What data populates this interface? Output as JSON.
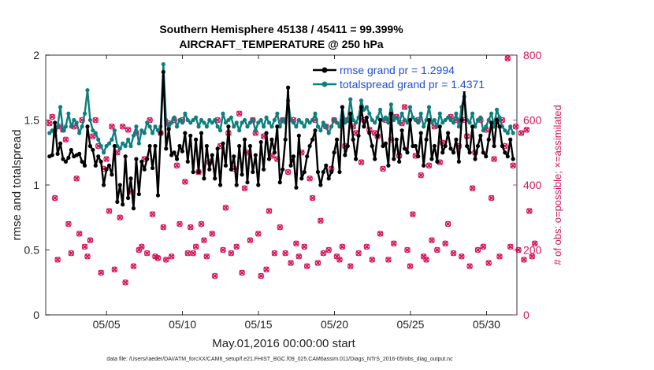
{
  "chart_data": {
    "type": "line",
    "title_line1": "Southern Hemisphere 45138 / 45411 = 99.399%",
    "title_line2": "AIRCRAFT_TEMPERATURE @ 250 hPa",
    "xlabel": "May.01,2016 00:00:00 start",
    "ylabel": "rmse and totalspread",
    "ylabel_right": "# of obs: o=possible; ×=assimilated",
    "footer": "data file: /Users/raeder/DAI/ATM_forcXX/CAM6_setup/f.e21.FHIST_BGC.f09_025.CAM6assim.011/Diags_NTrS_2016-05/obs_diag_output.nc",
    "xlim": [
      1,
      32
    ],
    "ylim": [
      0,
      2
    ],
    "ylim_right": [
      0,
      800
    ],
    "x_ticks": [
      5,
      10,
      15,
      20,
      25,
      30
    ],
    "x_tick_labels": [
      "05/05",
      "05/10",
      "05/15",
      "05/20",
      "05/25",
      "05/30"
    ],
    "y_ticks": [
      0,
      0.5,
      1,
      1.5,
      2
    ],
    "y_tick_labels": [
      "0",
      "0.5",
      "1",
      "1.5",
      "2"
    ],
    "y_ticks_right": [
      0,
      200,
      400,
      600,
      800
    ],
    "y_tick_labels_right": [
      "0",
      "200",
      "400",
      "600",
      "800"
    ],
    "legend_position": "top-right",
    "series": [
      {
        "name": "rmse grand pr = 1.2994",
        "color": "#000000",
        "axis": "left",
        "values": [
          1.22,
          1.23,
          1.48,
          1.24,
          1.32,
          1.2,
          1.18,
          1.21,
          1.27,
          1.22,
          1.23,
          1.24,
          1.18,
          1.15,
          1.45,
          1.3,
          1.27,
          1.15,
          1.22,
          1.18,
          1.0,
          1.12,
          1.15,
          1.08,
          1.3,
          0.87,
          1.0,
          0.85,
          1.22,
          0.9,
          1.05,
          0.82,
          1.2,
          0.93,
          1.18,
          1.12,
          1.2,
          1.3,
          1.13,
          1.3,
          0.92,
          1.4,
          1.87,
          1.28,
          1.43,
          1.23,
          1.25,
          1.2,
          1.3,
          1.26,
          1.4,
          1.18,
          1.38,
          1.1,
          1.35,
          1.1,
          1.4,
          1.05,
          1.3,
          1.12,
          1.23,
          1.05,
          1.28,
          1.0,
          1.32,
          1.15,
          1.45,
          1.12,
          1.22,
          1.0,
          1.3,
          1.08,
          1.35,
          1.02,
          1.3,
          1.1,
          1.23,
          1.0,
          1.33,
          1.12,
          1.4,
          1.2,
          1.35,
          1.25,
          1.45,
          1.02,
          1.12,
          1.35,
          1.75,
          1.15,
          1.22,
          0.98,
          1.38,
          1.05,
          1.1,
          1.22,
          1.3,
          1.35,
          1.42,
          1.1,
          1.0,
          1.1,
          1.15,
          1.05,
          1.1,
          1.25,
          1.35,
          1.1,
          1.6,
          1.23,
          1.3,
          1.55,
          1.35,
          1.2,
          1.38,
          1.6,
          1.45,
          1.52,
          1.4,
          1.3,
          1.2,
          1.38,
          1.5,
          1.3,
          1.32,
          1.15,
          1.55,
          1.2,
          1.35,
          1.18,
          1.42,
          1.28,
          1.25,
          1.5,
          1.3,
          1.3,
          1.22,
          1.4,
          1.15,
          1.35,
          1.5,
          1.2,
          1.3,
          1.18,
          1.45,
          1.25,
          1.3,
          1.4,
          1.28,
          1.25,
          1.35,
          1.18,
          1.5,
          1.73,
          1.3,
          1.25,
          1.45,
          1.2,
          1.3,
          1.38,
          1.25,
          1.22,
          1.35,
          1.48,
          1.3,
          1.5,
          1.45,
          1.3,
          1.25,
          1.22,
          1.35,
          1.2
        ]
      },
      {
        "name": "totalspread grand pr = 1.4371",
        "color": "#0e7f7f",
        "axis": "left",
        "values": [
          1.4,
          1.42,
          1.38,
          1.45,
          1.6,
          1.42,
          1.45,
          1.55,
          1.45,
          1.5,
          1.48,
          1.4,
          1.45,
          1.55,
          1.73,
          1.5,
          1.42,
          1.4,
          1.35,
          1.3,
          1.25,
          1.3,
          1.32,
          1.35,
          1.42,
          1.3,
          1.28,
          1.32,
          1.3,
          1.35,
          1.3,
          1.38,
          1.45,
          1.32,
          1.42,
          1.4,
          1.48,
          1.45,
          1.4,
          1.45,
          1.42,
          1.45,
          1.93,
          1.5,
          1.45,
          1.48,
          1.52,
          1.45,
          1.5,
          1.48,
          1.55,
          1.5,
          1.48,
          1.5,
          1.52,
          1.45,
          1.5,
          1.48,
          1.45,
          1.5,
          1.48,
          1.5,
          1.45,
          1.42,
          1.55,
          1.48,
          1.5,
          1.52,
          1.45,
          1.48,
          1.42,
          1.48,
          1.5,
          1.45,
          1.48,
          1.5,
          1.42,
          1.48,
          1.5,
          1.45,
          1.52,
          1.48,
          1.45,
          1.5,
          1.55,
          1.45,
          1.5,
          1.48,
          1.65,
          1.5,
          1.48,
          1.45,
          1.5,
          1.48,
          1.45,
          1.5,
          1.48,
          1.5,
          1.55,
          1.45,
          1.42,
          1.48,
          1.45,
          1.4,
          1.45,
          1.5,
          1.48,
          1.45,
          1.6,
          1.48,
          1.5,
          1.66,
          1.5,
          1.48,
          1.52,
          1.65,
          1.58,
          1.6,
          1.55,
          1.5,
          1.48,
          1.52,
          1.58,
          1.5,
          1.52,
          1.48,
          1.62,
          1.5,
          1.52,
          1.48,
          1.55,
          1.5,
          1.48,
          1.6,
          1.52,
          1.5,
          1.48,
          1.55,
          1.45,
          1.5,
          1.6,
          1.48,
          1.5,
          1.45,
          1.55,
          1.48,
          1.5,
          1.52,
          1.5,
          1.48,
          1.55,
          1.45,
          1.6,
          1.68,
          1.5,
          1.48,
          1.55,
          1.45,
          1.5,
          1.52,
          1.42,
          1.45,
          1.5,
          1.55,
          1.45,
          1.58,
          1.52,
          1.45,
          1.42,
          1.4,
          1.45,
          1.4
        ]
      },
      {
        "name": "possible",
        "color": "#d4145a",
        "axis": "right",
        "values": [
          590,
          610,
          360,
          170,
          580,
          570,
          540,
          280,
          190,
          580,
          420,
          250,
          600,
          210,
          180,
          230,
          550,
          600,
          520,
          130,
          450,
          480,
          320,
          580,
          140,
          500,
          300,
          580,
          100,
          570,
          380,
          150,
          560,
          200,
          210,
          480,
          190,
          600,
          310,
          180,
          175,
          560,
          270,
          170,
          590,
          180,
          600,
          460,
          280,
          600,
          410,
          190,
          270,
          190,
          210,
          440,
          280,
          230,
          180,
          470,
          250,
          120,
          600,
          520,
          200,
          330,
          560,
          190,
          450,
          210,
          620,
          130,
          390,
          500,
          230,
          600,
          560,
          250,
          120,
          550,
          140,
          320,
          490,
          190,
          480,
          270,
          600,
          190,
          440,
          160,
          600,
          220,
          180,
          500,
          210,
          150,
          420,
          360,
          600,
          160,
          290,
          190,
          580,
          200,
          450,
          600,
          180,
          170,
          210,
          520,
          600,
          150,
          580,
          560,
          190,
          470,
          600,
          210,
          570,
          170,
          560,
          550,
          250,
          450,
          600,
          170,
          540,
          220,
          610,
          490,
          590,
          640,
          200,
          150,
          310,
          490,
          600,
          430,
          180,
          170,
          460,
          230,
          580,
          200,
          470,
          530,
          220,
          280,
          610,
          190,
          600,
          520,
          180,
          600,
          550,
          150,
          390,
          500,
          200,
          600,
          210,
          570,
          160,
          360,
          480,
          600,
          180,
          600,
          520,
          790,
          210,
          460,
          580,
          200,
          560,
          170,
          570,
          320,
          180,
          220
        ]
      },
      {
        "name": "assimilated",
        "color": "#d4145a",
        "axis": "right",
        "values": [
          590,
          610,
          360,
          170,
          580,
          570,
          540,
          280,
          190,
          580,
          420,
          250,
          600,
          210,
          180,
          230,
          550,
          600,
          520,
          130,
          450,
          480,
          320,
          580,
          140,
          500,
          300,
          580,
          100,
          570,
          380,
          150,
          560,
          200,
          210,
          480,
          190,
          600,
          310,
          180,
          175,
          560,
          270,
          170,
          590,
          180,
          600,
          460,
          280,
          600,
          410,
          190,
          270,
          190,
          210,
          440,
          280,
          230,
          180,
          470,
          250,
          120,
          600,
          520,
          200,
          330,
          560,
          190,
          450,
          210,
          620,
          130,
          390,
          500,
          230,
          600,
          560,
          250,
          120,
          550,
          140,
          320,
          490,
          190,
          480,
          270,
          600,
          190,
          440,
          160,
          600,
          220,
          180,
          500,
          210,
          150,
          420,
          360,
          600,
          160,
          290,
          190,
          580,
          200,
          450,
          600,
          180,
          170,
          210,
          520,
          600,
          150,
          580,
          560,
          190,
          470,
          600,
          210,
          570,
          170,
          560,
          550,
          250,
          450,
          600,
          170,
          540,
          220,
          610,
          490,
          590,
          640,
          200,
          150,
          310,
          490,
          600,
          430,
          180,
          170,
          460,
          230,
          580,
          200,
          470,
          530,
          220,
          280,
          610,
          190,
          600,
          520,
          180,
          600,
          550,
          150,
          390,
          500,
          200,
          600,
          210,
          570,
          160,
          360,
          480,
          600,
          180,
          600,
          520,
          790,
          210,
          460,
          580,
          200,
          560,
          170,
          570,
          320,
          180,
          220
        ]
      }
    ]
  }
}
